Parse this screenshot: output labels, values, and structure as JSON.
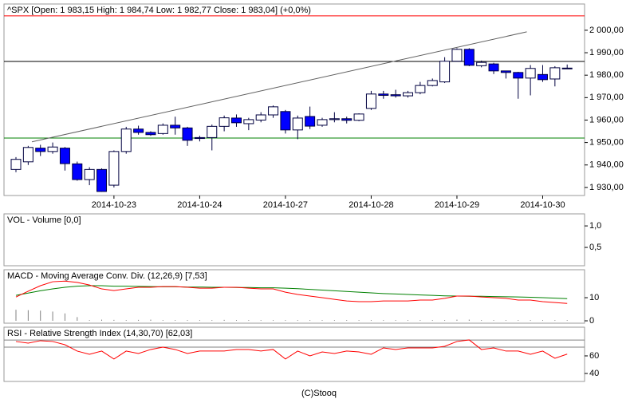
{
  "chart_data": [
    {
      "type": "candlestick",
      "title": "^SPX [Open: 1 983,15  High: 1 984,74  Low: 1 982,77  Close: 1 983,04]  (+0,0%)",
      "categories": [
        null,
        null,
        null,
        null,
        null,
        null,
        null,
        null,
        "2014-10-23",
        null,
        null,
        null,
        null,
        null,
        null,
        "2014-10-24",
        null,
        null,
        null,
        null,
        null,
        null,
        "2014-10-27",
        null,
        null,
        null,
        null,
        null,
        null,
        "2014-10-28",
        null,
        null,
        null,
        null,
        null,
        null,
        "2014-10-29",
        null,
        null,
        null,
        null,
        null,
        null,
        "2014-10-30",
        null,
        null
      ],
      "open": [
        1938,
        1941.4,
        1947.5,
        1946,
        1947.5,
        1940.5,
        1933.5,
        1938,
        1931,
        1946,
        1956,
        1954.5,
        1954,
        1957.7,
        1956.5,
        1952.2,
        1952.2,
        1957.2,
        1960.9,
        1958.4,
        1960,
        1962.3,
        1963.8,
        1955.6,
        1961.6,
        1957.7,
        1960.2,
        1960.6,
        1959.9,
        1965.2,
        1971.6,
        1971.3,
        1970.8,
        1972.2,
        1975.4,
        1977,
        1986.2,
        1991.5,
        1984.2,
        1985,
        1981.9,
        1981.2,
        1978.7,
        1980.3,
        1978.3,
        1983.15
      ],
      "high": [
        1943.5,
        1948.5,
        1949,
        1950,
        1948,
        1941.5,
        1939,
        1938.5,
        1946.5,
        1957,
        1957.5,
        1955,
        1958.5,
        1961.5,
        1957,
        1953,
        1958,
        1962,
        1962.5,
        1961,
        1963.5,
        1966.5,
        1964.5,
        1962,
        1966,
        1961,
        1963.5,
        1961.5,
        1963,
        1973,
        1973,
        1973.5,
        1973,
        1977,
        1978.5,
        1988,
        1992,
        1992,
        1986.5,
        1985.5,
        1982,
        1981.5,
        1984.5,
        1984.5,
        1984,
        1984.74
      ],
      "low": [
        1936.8,
        1940,
        1944,
        1945,
        1937.5,
        1933,
        1931,
        1928,
        1930,
        1945,
        1953.5,
        1953,
        1953.5,
        1953.5,
        1948.5,
        1950.5,
        1946.5,
        1955,
        1957,
        1955.5,
        1959,
        1961,
        1954,
        1951.5,
        1956,
        1957,
        1959,
        1958.5,
        1959.5,
        1964.5,
        1969.5,
        1970,
        1970,
        1971.5,
        1975,
        1976.5,
        1986,
        1984,
        1983.5,
        1980.5,
        1978.5,
        1969.5,
        1971,
        1977,
        1975,
        1982.77
      ],
      "close": [
        1942.5,
        1947.8,
        1946,
        1948,
        1940.6,
        1933.5,
        1938,
        1928.2,
        1946,
        1956,
        1954.5,
        1953.5,
        1957.7,
        1956.5,
        1951,
        1951.8,
        1957.2,
        1961,
        1958.8,
        1960.2,
        1962.3,
        1965.9,
        1955.6,
        1960.9,
        1957.3,
        1960.2,
        1960.6,
        1959.9,
        1962.7,
        1971.6,
        1971,
        1970.8,
        1972.2,
        1975.4,
        1977.6,
        1986.2,
        1991.5,
        1984.4,
        1985.7,
        1981.9,
        1981.2,
        1978.7,
        1983,
        1978,
        1983.3,
        1983.04
      ],
      "up_color": "#ffffff",
      "down_color": "#0000ff",
      "hlines": [
        {
          "value": 2006.4,
          "color": "#ff0000"
        },
        {
          "value": 1986.1,
          "color": "#000000"
        },
        {
          "value": 1952,
          "color": "#008000"
        }
      ],
      "trendline": {
        "x": [
          1.3,
          41.7
        ],
        "y": [
          1950.3,
          1999.3
        ],
        "color": "#606060"
      },
      "ylim": [
        1926.4,
        2011.7
      ],
      "yticks": [
        {
          "value": 1930,
          "label": "1 930,00"
        },
        {
          "value": 1940,
          "label": "1 940,00"
        },
        {
          "value": 1950,
          "label": "1 950,00"
        },
        {
          "value": 1960,
          "label": "1 960,00"
        },
        {
          "value": 1970,
          "label": "1 970,00"
        },
        {
          "value": 1980,
          "label": "1 980,00"
        },
        {
          "value": 1990,
          "label": "1 990,00"
        },
        {
          "value": 2000,
          "label": "2 000,00"
        }
      ]
    },
    {
      "type": "bar",
      "title": "VOL - Volume [0,0]",
      "ylim": [
        0.074,
        1.28
      ],
      "yticks": [
        {
          "value": 1,
          "label": "1,0"
        },
        {
          "value": 0.5,
          "label": "0,5"
        }
      ]
    },
    {
      "type": "line",
      "title": "MACD - Moving Average Conv. Div. (12,26,9) [7,53]",
      "series": [
        {
          "color": "#008000",
          "values": [
            11.0,
            12.0,
            13.0,
            13.8,
            14.5,
            15.0,
            15.2,
            15.2,
            15.0,
            15.0,
            14.9,
            14.8,
            14.7,
            14.7,
            14.6,
            14.6,
            14.5,
            14.5,
            14.4,
            14.4,
            14.3,
            14.3,
            14.1,
            13.9,
            13.6,
            13.3,
            13.0,
            12.7,
            12.4,
            12.1,
            11.8,
            11.6,
            11.4,
            11.2,
            11.0,
            10.8,
            10.7,
            10.6,
            10.6,
            10.5,
            10.4,
            10.3,
            10.2,
            10.0,
            9.8,
            9.6
          ]
        },
        {
          "color": "#ff0000",
          "values": [
            10.3,
            12.8,
            15.2,
            16.9,
            17.2,
            16.6,
            15.5,
            13.8,
            13.1,
            13.8,
            14.5,
            14.5,
            14.8,
            14.8,
            14.5,
            14.1,
            14.1,
            14.5,
            14.5,
            14.1,
            13.8,
            13.8,
            12.4,
            11.4,
            10.7,
            10.0,
            9.3,
            8.6,
            8.3,
            8.3,
            8.6,
            8.6,
            8.6,
            9.0,
            9.0,
            9.7,
            10.7,
            10.7,
            10.3,
            10.0,
            9.7,
            9.0,
            9.0,
            8.3,
            7.9,
            7.53
          ]
        }
      ],
      "histogram": {
        "color": "#808080",
        "values": [
          4.8,
          4.6,
          4.4,
          4.0,
          3.2,
          1.6,
          0.3,
          0.5,
          0.4,
          0.3,
          0.4,
          0.5,
          0.3,
          0.3,
          0.3,
          0.3,
          0.3,
          0.4,
          0.3,
          0.3,
          0.3,
          0.3,
          0.3,
          0.3,
          0.3,
          0.3,
          0.3,
          0.3,
          0.3,
          0.3,
          0.3,
          0.3,
          0.3,
          0.3,
          0.3,
          0.3,
          0.5,
          0.5,
          0.3,
          0.3,
          0.3,
          0.3,
          0.3,
          0.3,
          0.3,
          0.3
        ]
      },
      "ylim": [
        -1.03,
        22.1
      ],
      "yticks": [
        10,
        0
      ]
    },
    {
      "type": "line",
      "title": "RSI - Relative Strength Index (14,30,70) [62,03]",
      "series": [
        {
          "color": "#ff0000",
          "values": [
            76.4,
            74.5,
            77.3,
            76.4,
            72.7,
            65.5,
            61.8,
            65.5,
            56.4,
            65.5,
            62.7,
            67.3,
            70,
            67.3,
            62.7,
            65.5,
            65.5,
            65.5,
            67.3,
            67.3,
            65.5,
            67.3,
            56.4,
            65.5,
            60,
            64.5,
            62.7,
            65.5,
            64.5,
            61.8,
            69.1,
            67.3,
            69.1,
            69.1,
            69.1,
            70.9,
            76.4,
            78.2,
            67.3,
            69.1,
            65.5,
            65.5,
            61.8,
            65.5,
            57.3,
            62.03
          ]
        }
      ],
      "hlines": [
        {
          "value": 78,
          "color": "#808080"
        },
        {
          "value": 70,
          "color": "#808080"
        }
      ],
      "ylim": [
        30.9,
        92.7
      ],
      "yticks": [
        60,
        40
      ]
    }
  ],
  "footer": "(C)Stooq"
}
